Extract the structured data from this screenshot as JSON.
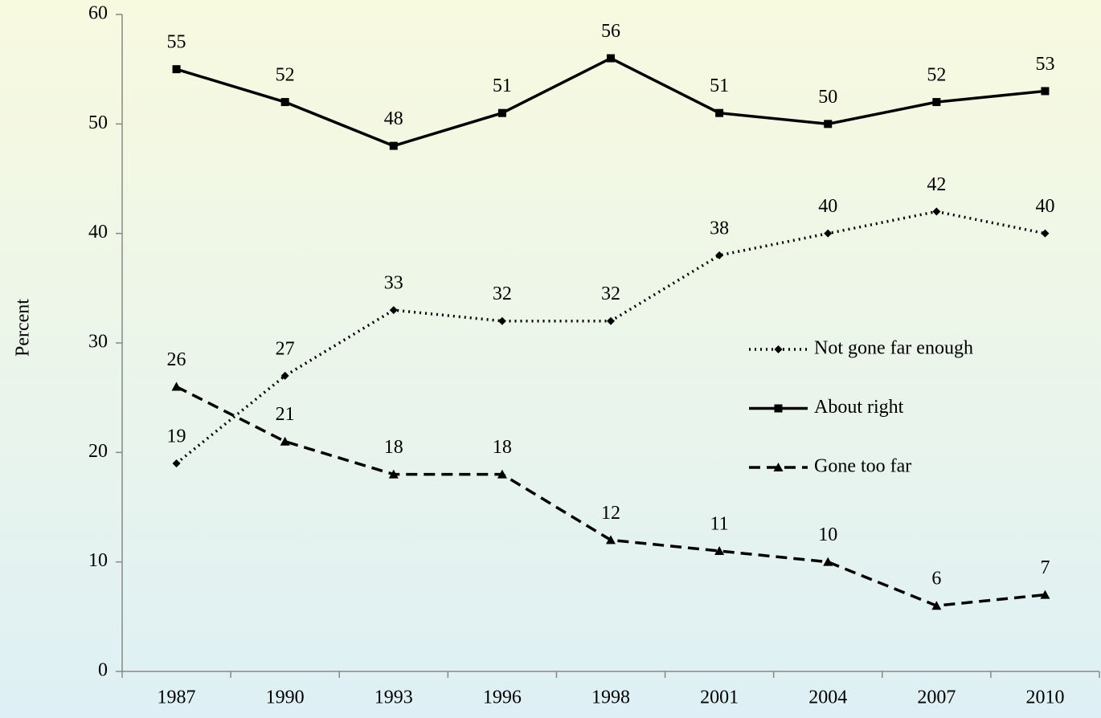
{
  "chart_data": {
    "type": "line",
    "y_label": "Percent",
    "categories": [
      "1987",
      "1990",
      "1993",
      "1996",
      "1998",
      "2001",
      "2004",
      "2007",
      "2010"
    ],
    "series": [
      {
        "name": "Not gone far enough",
        "color": "#000000",
        "line_style": "dotted",
        "marker": "diamond",
        "values": [
          19,
          27,
          33,
          32,
          32,
          38,
          40,
          42,
          40
        ]
      },
      {
        "name": "About right",
        "color": "#000000",
        "line_style": "solid",
        "marker": "square",
        "values": [
          55,
          52,
          48,
          51,
          56,
          51,
          50,
          52,
          53
        ]
      },
      {
        "name": "Gone too far",
        "color": "#000000",
        "line_style": "dashed",
        "marker": "triangle",
        "values": [
          26,
          21,
          18,
          18,
          12,
          11,
          10,
          6,
          7
        ]
      }
    ],
    "ylim": [
      0,
      60
    ],
    "yticks": [
      0,
      10,
      20,
      30,
      40,
      50,
      60
    ],
    "data_labels": true
  }
}
